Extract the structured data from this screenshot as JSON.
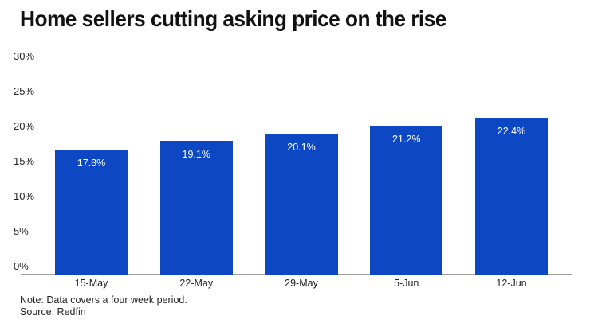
{
  "title": "Home sellers cutting asking price on the rise",
  "notes": {
    "note": "Note: Data covers a four week period.",
    "source": "Source: Redfin"
  },
  "colors": {
    "bar_fill": "#0d47c4",
    "bar_label": "#ffffff",
    "gridline": "#bcbcbc",
    "axis_line": "#a0a0a0",
    "title_text": "#111111",
    "tick_text": "#222222"
  },
  "chart_data": {
    "type": "bar",
    "title": "Home sellers cutting asking price on the rise",
    "categories": [
      "15-May",
      "22-May",
      "29-May",
      "5-Jun",
      "12-Jun"
    ],
    "values": [
      17.8,
      19.1,
      20.1,
      21.2,
      22.4
    ],
    "value_labels": [
      "17.8%",
      "19.1%",
      "20.1%",
      "21.2%",
      "22.4%"
    ],
    "xlabel": "",
    "ylabel": "",
    "ylim": [
      0,
      30
    ],
    "yticks": [
      {
        "label": "30%",
        "value": 30
      },
      {
        "label": "25%",
        "value": 25
      },
      {
        "label": "20%",
        "value": 20
      },
      {
        "label": "15%",
        "value": 15
      },
      {
        "label": "10%",
        "value": 10
      },
      {
        "label": "5%",
        "value": 5
      },
      {
        "label": "0%",
        "value": 0
      }
    ],
    "grid": true,
    "legend": false,
    "note": "Note: Data covers a four week period.",
    "source": "Source: Redfin"
  }
}
